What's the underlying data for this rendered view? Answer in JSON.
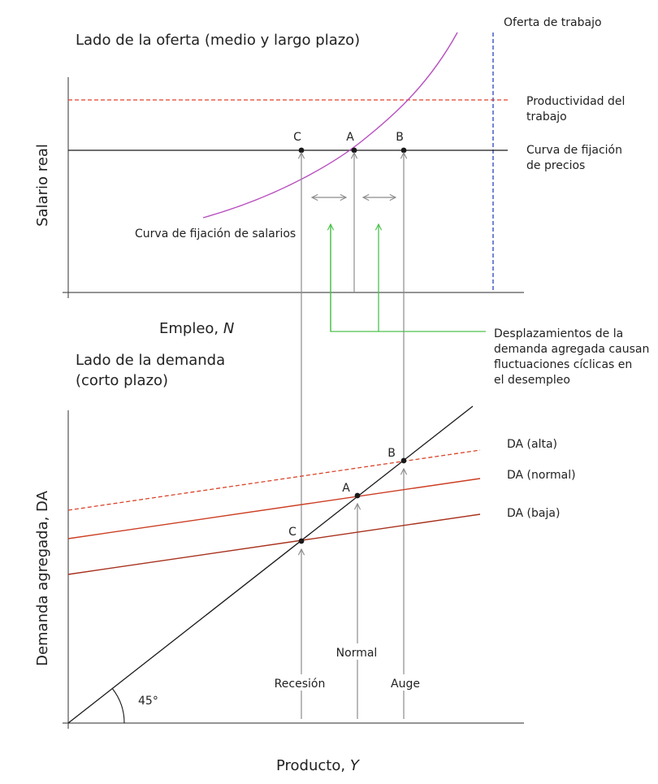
{
  "colors": {
    "axis": "#555555",
    "black": "#1a1a1a",
    "grey_arrow": "#8c8c8c",
    "magenta": "#b84ec0",
    "red_dashed": "#e0402a",
    "blue_dashed": "#3a4fc0",
    "green": "#4dc24d",
    "da_alta": "#d9442a",
    "da_normal": "#cc3d22",
    "da_baja": "#a8301c"
  },
  "supply": {
    "title": "Lado de la oferta (medio y largo plazo)",
    "y_label": "Salario real",
    "x_label_prefix": "Empleo, ",
    "x_label_var": "N",
    "labour_supply": "Oferta de trabajo",
    "productivity_line1": "Productividad del",
    "productivity_line2": "trabajo",
    "price_setting_line1": "Curva de fijación",
    "price_setting_line2": "de precios",
    "wage_setting": "Curva de fijación de salarios",
    "point_c": "C",
    "point_a": "A",
    "point_b": "B"
  },
  "annotation": {
    "line1": "Desplazamientos de la",
    "line2": "demanda agregada causan",
    "line3": "fluctuaciones cíclicas en",
    "line4": "el desempleo"
  },
  "demand": {
    "title_line1": "Lado de la demanda",
    "title_line2": "(corto plazo)",
    "y_label": "Demanda agregada, DA",
    "x_label_prefix": "Producto, ",
    "x_label_var": "Y",
    "da_high": "DA (alta)",
    "da_normal": "DA (normal)",
    "da_low": "DA (baja)",
    "point_b": "B",
    "point_a": "A",
    "point_c": "C",
    "angle": "45°",
    "recession": "Recesión",
    "normal": "Normal",
    "boom": "Auge"
  }
}
